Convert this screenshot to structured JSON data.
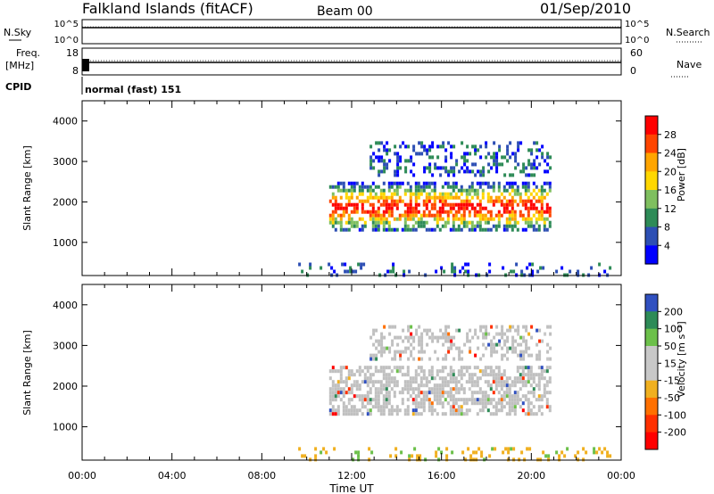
{
  "header": {
    "station": "Falkland Islands (fitACF)",
    "beam": "Beam 00",
    "date": "01/Sep/2010"
  },
  "top_panels": {
    "nsky_label": "N.Sky",
    "nsearch_label": "N.Search",
    "noise_ticks": [
      "10^5",
      "10^0"
    ],
    "freq_label": "Freq.",
    "freq_unit": "[MHz]",
    "freq_ticks": [
      "18",
      "8"
    ],
    "nave_label": "Nave",
    "nave_ticks": [
      "60",
      "0"
    ],
    "cpid_label": "CPID",
    "cpid_value": "normal (fast) 151"
  },
  "colors": {
    "power": [
      "#0000ff",
      "#2d4fb4",
      "#2e8b57",
      "#7fbf5f",
      "#ffd700",
      "#ffa500",
      "#ff4500",
      "#ff0000"
    ],
    "velocity": [
      "#3050c0",
      "#2e8b57",
      "#6cc04a",
      "#c8c8c8",
      "#c8c8c8",
      "#f0b020",
      "#ff7000",
      "#ff3000",
      "#ff0000"
    ],
    "ground_scatter": "#c0c0c0"
  },
  "chart_data": [
    {
      "type": "heatmap",
      "parameter": "Power",
      "ylabel": "Slant Range [km]",
      "xlabel": "",
      "x_ticks": [
        "00:00",
        "04:00",
        "08:00",
        "12:00",
        "16:00",
        "20:00",
        "00:00"
      ],
      "x_range_hours": [
        0,
        24
      ],
      "y_ticks": [
        1000,
        2000,
        3000,
        4000
      ],
      "y_range_km": [
        180,
        4500
      ],
      "colorbar_label": "Power [dB]",
      "colorbar_ticks": [
        4,
        8,
        12,
        16,
        20,
        24,
        28
      ],
      "colorbar_range": [
        0,
        32
      ],
      "echo_regions": [
        {
          "start_hour": 11.0,
          "end_hour": 20.8,
          "range_km": [
            1300,
            2500
          ],
          "power_db": "4-28"
        },
        {
          "start_hour": 12.8,
          "end_hour": 20.8,
          "range_km": [
            2700,
            3500
          ],
          "power_db": "4-12"
        },
        {
          "start_hour": 9.5,
          "end_hour": 23.8,
          "range_km": [
            180,
            500
          ],
          "power_db": "4-16"
        }
      ]
    },
    {
      "type": "heatmap",
      "parameter": "Velocity",
      "ylabel": "Slant Range [km]",
      "xlabel": "Time UT",
      "x_ticks": [
        "00:00",
        "04:00",
        "08:00",
        "12:00",
        "16:00",
        "20:00",
        "00:00"
      ],
      "x_range_hours": [
        0,
        24
      ],
      "y_ticks": [
        1000,
        2000,
        3000,
        4000
      ],
      "y_range_km": [
        180,
        4500
      ],
      "colorbar_label": "Velocity [m s⁻¹]",
      "colorbar_ticks": [
        200,
        100,
        50,
        15,
        -15,
        -50,
        -100,
        -200
      ],
      "colorbar_range": [
        -250,
        250
      ],
      "echo_regions": [
        {
          "start_hour": 11.0,
          "end_hour": 20.8,
          "range_km": [
            1300,
            2500
          ],
          "velocity": "mostly ground scatter (-15 to 15)"
        },
        {
          "start_hour": 12.8,
          "end_hour": 20.8,
          "range_km": [
            2700,
            3500
          ],
          "velocity": "mostly ground scatter"
        },
        {
          "start_hour": 9.5,
          "end_hour": 23.8,
          "range_km": [
            180,
            500
          ],
          "velocity": "-15 to -50"
        }
      ]
    }
  ]
}
